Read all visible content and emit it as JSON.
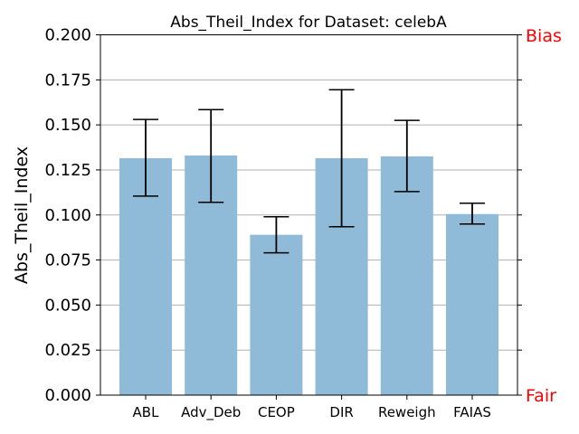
{
  "chart_data": {
    "type": "bar",
    "title": "Abs_Theil_Index for Dataset: celebA",
    "xlabel": "",
    "ylabel": "Abs_Theil_Index",
    "categories": [
      "ABL",
      "Adv_Deb",
      "CEOP",
      "DIR",
      "Reweigh",
      "FAIAS"
    ],
    "values": [
      0.1315,
      0.133,
      0.089,
      0.1315,
      0.1325,
      0.1005
    ],
    "error_low": [
      0.1105,
      0.107,
      0.079,
      0.0935,
      0.113,
      0.095
    ],
    "error_high": [
      0.153,
      0.1585,
      0.099,
      0.1695,
      0.1525,
      0.1065
    ],
    "ylim": [
      0,
      0.2
    ],
    "yticks": [
      "0.000",
      "0.025",
      "0.050",
      "0.075",
      "0.100",
      "0.125",
      "0.150",
      "0.175",
      "0.200"
    ],
    "grid": "horizontal",
    "bar_color": "#8fbad8",
    "right_labels": {
      "top": "Bias",
      "bottom": "Fair",
      "color": "#ff0000"
    }
  }
}
